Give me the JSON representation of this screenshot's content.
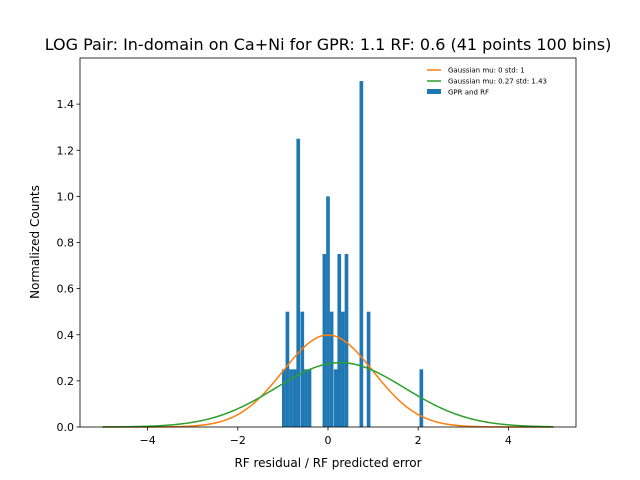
{
  "chart_data": {
    "type": "bar",
    "title": "LOG Pair: In-domain on Ca+Ni for GPR: 1.1 RF: 0.6 (41 points 100 bins)",
    "xlabel": "RF residual / RF predicted error",
    "ylabel": "Normalized Counts",
    "xlim": [
      -5.5,
      5.5
    ],
    "ylim": [
      0,
      1.6
    ],
    "xticks": [
      -4,
      -2,
      0,
      2,
      4
    ],
    "yticks": [
      0.0,
      0.2,
      0.4,
      0.6,
      0.8,
      1.0,
      1.2,
      1.4
    ],
    "grid": false,
    "legend_position": "top-right",
    "legend": [
      {
        "label": "Gaussian mu: 0 std: 1",
        "kind": "line",
        "color": "#ff7f0e"
      },
      {
        "label": "Gaussian mu: 0.27 std: 1.43",
        "kind": "line",
        "color": "#2ca02c"
      },
      {
        "label": "GPR and RF",
        "kind": "bar",
        "color": "#1f77b4"
      }
    ],
    "histogram": {
      "name": "GPR and RF",
      "color": "#1f77b4",
      "bin_width": 0.0814,
      "bins": [
        {
          "x": -0.98,
          "value": 0.25
        },
        {
          "x": -0.9,
          "value": 0.5
        },
        {
          "x": -0.82,
          "value": 0.25
        },
        {
          "x": -0.74,
          "value": 0.25
        },
        {
          "x": -0.66,
          "value": 1.25
        },
        {
          "x": -0.57,
          "value": 0.5
        },
        {
          "x": -0.49,
          "value": 0.25
        },
        {
          "x": -0.41,
          "value": 0.25
        },
        {
          "x": -0.08,
          "value": 0.75
        },
        {
          "x": 0.0,
          "value": 1.0
        },
        {
          "x": 0.08,
          "value": 0.5
        },
        {
          "x": 0.17,
          "value": 0.25
        },
        {
          "x": 0.25,
          "value": 0.75
        },
        {
          "x": 0.33,
          "value": 0.5
        },
        {
          "x": 0.41,
          "value": 0.75
        },
        {
          "x": 0.74,
          "value": 1.5
        },
        {
          "x": 0.9,
          "value": 0.5
        },
        {
          "x": 2.07,
          "value": 0.25
        }
      ]
    },
    "series": [
      {
        "name": "Gaussian mu: 0 std: 1",
        "type": "line",
        "mu": 0,
        "std": 1,
        "x_range": [
          -5,
          5
        ],
        "color": "#ff7f0e"
      },
      {
        "name": "Gaussian mu: 0.27 std: 1.43",
        "type": "line",
        "mu": 0.27,
        "std": 1.43,
        "x_range": [
          -5,
          5
        ],
        "color": "#2ca02c"
      }
    ]
  }
}
